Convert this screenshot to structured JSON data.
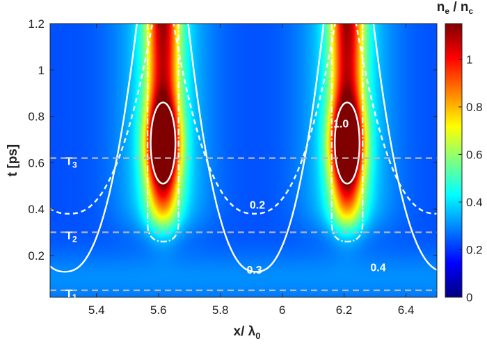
{
  "chart_data": {
    "type": "heatmap",
    "xlabel": "x/ λ",
    "xlabel_sub": "0",
    "ylabel": "t [ps]",
    "xlim": [
      5.25,
      6.5
    ],
    "ylim": [
      0.02,
      1.2
    ],
    "xticks": [
      {
        "v": 5.4,
        "label": "5.4"
      },
      {
        "v": 5.6,
        "label": "5.6"
      },
      {
        "v": 5.8,
        "label": "5.8"
      },
      {
        "v": 6.0,
        "label": "6"
      },
      {
        "v": 6.2,
        "label": "6.2"
      },
      {
        "v": 6.4,
        "label": "6.4"
      }
    ],
    "yticks": [
      {
        "v": 0.2,
        "label": "0.2"
      },
      {
        "v": 0.4,
        "label": "0.4"
      },
      {
        "v": 0.6,
        "label": "0.6"
      },
      {
        "v": 0.8,
        "label": "0.8"
      },
      {
        "v": 1.0,
        "label": "1"
      },
      {
        "v": 1.2,
        "label": "1.2"
      }
    ],
    "colorbar": {
      "title_main": "n",
      "title_sub1": "e",
      "title_sep": " / n",
      "title_sub2": "c",
      "min": 0,
      "max": 1.15,
      "ticks": [
        {
          "v": 0,
          "label": "0"
        },
        {
          "v": 0.2,
          "label": "0.2"
        },
        {
          "v": 0.4,
          "label": "0.4"
        },
        {
          "v": 0.6,
          "label": "0.6"
        },
        {
          "v": 0.8,
          "label": "0.8"
        },
        {
          "v": 1.0,
          "label": "1"
        }
      ],
      "colormap": "jet"
    },
    "filaments": [
      {
        "center": 5.615,
        "width": 0.05
      },
      {
        "center": 6.21,
        "width": 0.05
      }
    ],
    "time_markers": [
      {
        "t": 0.62,
        "label": "T",
        "sub": "3",
        "label_x": 5.3
      },
      {
        "t": 0.3,
        "label": "T",
        "sub": "2",
        "label_x": 5.3
      },
      {
        "t": 0.05,
        "label": "T",
        "sub": "1",
        "label_x": 5.3
      }
    ],
    "contour_labels": [
      {
        "text": "1.0",
        "x": 6.19,
        "y": 0.77
      },
      {
        "text": "0.2",
        "x": 5.92,
        "y": 0.42
      },
      {
        "text": "0.3",
        "x": 5.91,
        "y": 0.14
      },
      {
        "text": "0.4",
        "x": 6.31,
        "y": 0.15
      }
    ]
  }
}
